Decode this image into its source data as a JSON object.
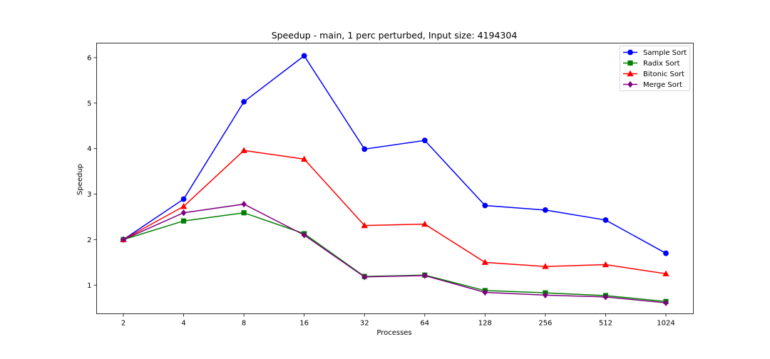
{
  "chart_data": {
    "type": "line",
    "title": "Speedup - main, 1 perc perturbed, Input size: 4194304",
    "xlabel": "Processes",
    "ylabel": "Speedup",
    "categories": [
      "2",
      "4",
      "8",
      "16",
      "32",
      "64",
      "128",
      "256",
      "512",
      "1024"
    ],
    "yticks": [
      1,
      2,
      3,
      4,
      5,
      6
    ],
    "ylim": [
      0.37,
      6.32
    ],
    "grid": false,
    "legend_position": "top-right",
    "series": [
      {
        "name": "Sample Sort",
        "color": "#0000ff",
        "marker": "circle",
        "values": [
          2.0,
          2.89,
          5.03,
          6.04,
          3.99,
          4.18,
          2.75,
          2.65,
          2.43,
          1.7
        ]
      },
      {
        "name": "Radix Sort",
        "color": "#008000",
        "marker": "square",
        "values": [
          2.0,
          2.41,
          2.59,
          2.13,
          1.19,
          1.22,
          0.88,
          0.83,
          0.77,
          0.64
        ]
      },
      {
        "name": "Bitonic Sort",
        "color": "#ff0000",
        "marker": "triangle",
        "values": [
          2.0,
          2.73,
          3.96,
          3.77,
          2.31,
          2.34,
          1.5,
          1.41,
          1.45,
          1.25
        ]
      },
      {
        "name": "Merge Sort",
        "color": "#800080",
        "marker": "diamond",
        "values": [
          2.0,
          2.59,
          2.78,
          2.1,
          1.18,
          1.21,
          0.84,
          0.78,
          0.74,
          0.61
        ]
      }
    ]
  }
}
